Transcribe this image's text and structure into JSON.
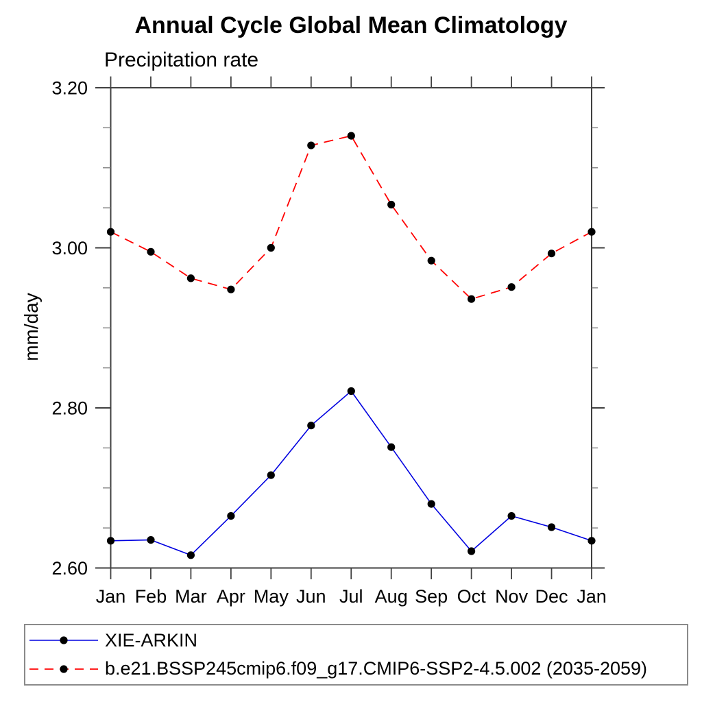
{
  "chart_data": {
    "type": "line",
    "title": "Annual Cycle Global Mean Climatology",
    "subtitle": "Precipitation rate",
    "ylabel": "mm/day",
    "xlabel": "",
    "x_categories": [
      "Jan",
      "Feb",
      "Mar",
      "Apr",
      "May",
      "Jun",
      "Jul",
      "Aug",
      "Sep",
      "Oct",
      "Nov",
      "Dec",
      "Jan"
    ],
    "ylim": [
      2.6,
      3.2
    ],
    "y_major_ticks": [
      2.6,
      2.8,
      3.0,
      3.2
    ],
    "y_tick_labels": [
      "2.60",
      "2.80",
      "3.00",
      "3.20"
    ],
    "y_minor_step": 0.05,
    "grid": false,
    "legend_position": "bottom",
    "series": [
      {
        "name": "XIE-ARKIN",
        "color": "#0000e0",
        "style": "solid",
        "marker": "circle",
        "marker_color": "#000000",
        "values": [
          2.634,
          2.635,
          2.616,
          2.665,
          2.716,
          2.778,
          2.821,
          2.751,
          2.68,
          2.621,
          2.665,
          2.651,
          2.634
        ]
      },
      {
        "name": "b.e21.BSSP245cmip6.f09_g17.CMIP6-SSP2-4.5.002 (2035-2059)",
        "color": "#ff0000",
        "style": "dashed",
        "marker": "circle",
        "marker_color": "#000000",
        "values": [
          3.02,
          2.995,
          2.962,
          2.948,
          3.0,
          3.128,
          3.14,
          3.054,
          2.984,
          2.936,
          2.951,
          2.993,
          3.02
        ]
      }
    ]
  },
  "colors": {
    "axis": "#404040",
    "major_tick": "#404040",
    "minor_tick": "#808080",
    "text": "#000000",
    "legend_border": "#8a8a8a"
  }
}
